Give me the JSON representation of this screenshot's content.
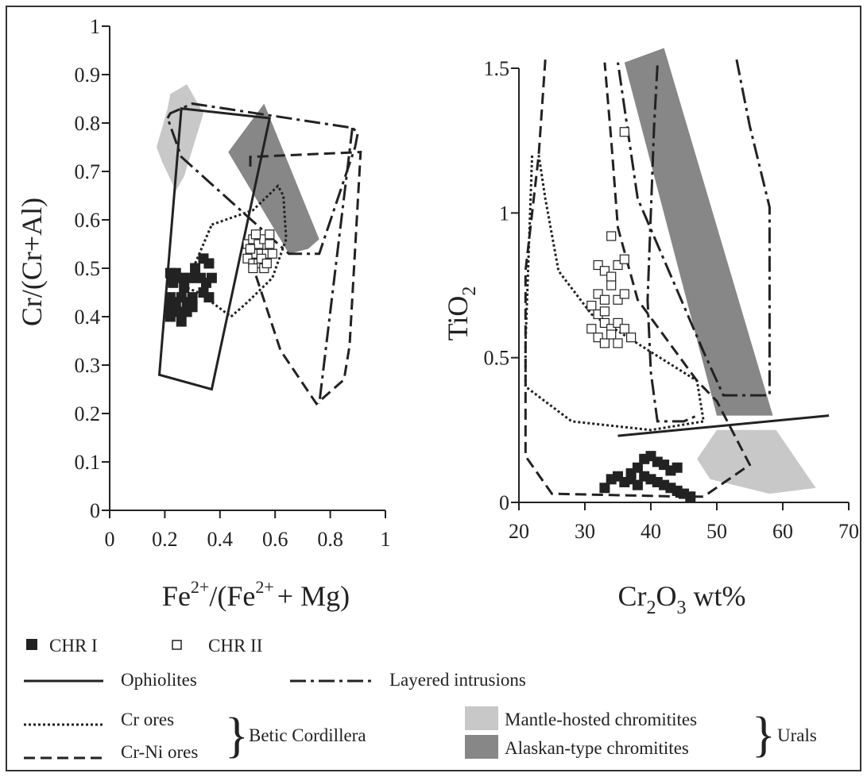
{
  "chart_data": [
    {
      "type": "scatter",
      "xlabel": {
        "a": "Fe",
        "a_sup": "2+",
        "b": "/(Fe",
        "b_sup": "2+",
        "c": "+ Mg)"
      },
      "ylabel": "Cr/(Cr+Al)",
      "xlim": [
        0,
        1
      ],
      "ylim": [
        0,
        1
      ],
      "xticks": [
        "0",
        "0.2",
        "0.4",
        "0.6",
        "0.8",
        "1"
      ],
      "yticks": [
        "0",
        "0.1",
        "0.2",
        "0.3",
        "0.4",
        "0.5",
        "0.6",
        "0.7",
        "0.8",
        "0.9",
        "1"
      ],
      "fields": [
        {
          "name": "Mantle-hosted chromitites",
          "style": "fill-light",
          "points": [
            [
              0.22,
              0.86
            ],
            [
              0.28,
              0.88
            ],
            [
              0.34,
              0.82
            ],
            [
              0.27,
              0.69
            ],
            [
              0.24,
              0.66
            ],
            [
              0.19,
              0.72
            ],
            [
              0.17,
              0.75
            ],
            [
              0.21,
              0.83
            ]
          ]
        },
        {
          "name": "Alaskan-type chromitites",
          "style": "fill-dark",
          "points": [
            [
              0.43,
              0.74
            ],
            [
              0.56,
              0.84
            ],
            [
              0.76,
              0.56
            ],
            [
              0.72,
              0.54
            ],
            [
              0.65,
              0.53
            ]
          ]
        },
        {
          "name": "Ophiolites",
          "style": "solid",
          "points": [
            [
              0.26,
              0.83
            ],
            [
              0.58,
              0.81
            ],
            [
              0.37,
              0.25
            ],
            [
              0.18,
              0.28
            ]
          ]
        },
        {
          "name": "Layered intrusions",
          "style": "dashdot",
          "points": [
            [
              0.21,
              0.81
            ],
            [
              0.22,
              0.82
            ],
            [
              0.3,
              0.84
            ],
            [
              0.88,
              0.79
            ],
            [
              0.9,
              0.78
            ],
            [
              0.89,
              0.75
            ],
            [
              0.76,
              0.53
            ],
            [
              0.65,
              0.53
            ],
            [
              0.26,
              0.73
            ],
            [
              0.21,
              0.81
            ]
          ]
        },
        {
          "name": "Cr ores",
          "style": "dotted",
          "points": [
            [
              0.37,
              0.59
            ],
            [
              0.52,
              0.62
            ],
            [
              0.61,
              0.67
            ],
            [
              0.63,
              0.65
            ],
            [
              0.64,
              0.56
            ],
            [
              0.59,
              0.48
            ],
            [
              0.5,
              0.43
            ],
            [
              0.44,
              0.4
            ],
            [
              0.37,
              0.43
            ],
            [
              0.32,
              0.45
            ],
            [
              0.28,
              0.46
            ],
            [
              0.31,
              0.51
            ],
            [
              0.37,
              0.59
            ]
          ]
        },
        {
          "name": "Cr-Ni ores",
          "style": "dashed",
          "points": [
            [
              0.51,
              0.71
            ],
            [
              0.51,
              0.73
            ],
            [
              0.91,
              0.74
            ],
            [
              0.87,
              0.34
            ],
            [
              0.85,
              0.27
            ],
            [
              0.75,
              0.22
            ],
            [
              0.62,
              0.33
            ],
            [
              0.51,
              0.52
            ]
          ]
        },
        {
          "name": "Layered intrusions",
          "style": "dashdot",
          "points": [
            [
              0.88,
              0.79
            ],
            [
              0.76,
              0.22
            ]
          ]
        }
      ],
      "series": [
        {
          "name": "CHR I",
          "marker": "filled-square",
          "points": [
            [
              0.22,
              0.49
            ],
            [
              0.24,
              0.49
            ],
            [
              0.25,
              0.48
            ],
            [
              0.27,
              0.48
            ],
            [
              0.29,
              0.48
            ],
            [
              0.31,
              0.48
            ],
            [
              0.33,
              0.48
            ],
            [
              0.35,
              0.47
            ],
            [
              0.37,
              0.48
            ],
            [
              0.23,
              0.47
            ],
            [
              0.27,
              0.46
            ],
            [
              0.31,
              0.5
            ],
            [
              0.34,
              0.52
            ],
            [
              0.36,
              0.51
            ],
            [
              0.22,
              0.44
            ],
            [
              0.24,
              0.43
            ],
            [
              0.26,
              0.44
            ],
            [
              0.28,
              0.43
            ],
            [
              0.22,
              0.42
            ],
            [
              0.25,
              0.41
            ],
            [
              0.28,
              0.41
            ],
            [
              0.3,
              0.42
            ],
            [
              0.22,
              0.4
            ],
            [
              0.26,
              0.39
            ],
            [
              0.36,
              0.44
            ],
            [
              0.34,
              0.45
            ],
            [
              0.3,
              0.44
            ]
          ]
        },
        {
          "name": "CHR II",
          "marker": "open-square",
          "points": [
            [
              0.5,
              0.55
            ],
            [
              0.52,
              0.56
            ],
            [
              0.54,
              0.55
            ],
            [
              0.56,
              0.56
            ],
            [
              0.58,
              0.55
            ],
            [
              0.51,
              0.53
            ],
            [
              0.53,
              0.53
            ],
            [
              0.55,
              0.53
            ],
            [
              0.57,
              0.53
            ],
            [
              0.59,
              0.53
            ],
            [
              0.5,
              0.52
            ],
            [
              0.52,
              0.51
            ],
            [
              0.54,
              0.51
            ],
            [
              0.56,
              0.5
            ],
            [
              0.51,
              0.54
            ],
            [
              0.53,
              0.57
            ],
            [
              0.55,
              0.52
            ],
            [
              0.57,
              0.51
            ],
            [
              0.52,
              0.5
            ],
            [
              0.58,
              0.57
            ]
          ]
        }
      ]
    },
    {
      "type": "scatter",
      "xlabel": {
        "a": "Cr",
        "a_sub": "2",
        "b": "O",
        "b_sub": "3",
        "c": " wt%"
      },
      "ylabel": {
        "a": "TiO",
        "a_sub": "2"
      },
      "xlim": [
        20,
        70
      ],
      "ylim": [
        0,
        1.5
      ],
      "xticks": [
        "20",
        "30",
        "40",
        "50",
        "60",
        "70"
      ],
      "yticks": [
        {
          "v": 0,
          "label": "0"
        },
        {
          "v": 0.5,
          "label": "0.5"
        },
        {
          "v": 1,
          "label": "1"
        },
        {
          "v": 1.5,
          "label": "1.5"
        }
      ],
      "fields": [
        {
          "name": "Alaskan-type chromitites",
          "style": "fill-dark",
          "points": [
            [
              36,
              1.52
            ],
            [
              42,
              1.57
            ],
            [
              58.5,
              0.3
            ],
            [
              50,
              0.3
            ]
          ]
        },
        {
          "name": "Mantle-hosted chromitites",
          "style": "fill-light",
          "points": [
            [
              47,
              0.15
            ],
            [
              50,
              0.25
            ],
            [
              59,
              0.25
            ],
            [
              65,
              0.05
            ],
            [
              58,
              0.03
            ],
            [
              49,
              0.08
            ]
          ]
        },
        {
          "name": "Ophiolites",
          "style": "solid",
          "points": [
            [
              35,
              0.23
            ],
            [
              67,
              0.3
            ]
          ]
        },
        {
          "name": "Layered intrusions",
          "style": "dashdot",
          "points": [
            [
              41,
              1.51
            ],
            [
              40.5,
              1.3
            ],
            [
              39.5,
              0.7
            ],
            [
              40,
              0.45
            ],
            [
              41,
              0.28
            ],
            [
              45,
              0.28
            ],
            [
              47,
              0.3
            ]
          ]
        },
        {
          "name": "Layered intrusions",
          "style": "dashdot",
          "points": [
            [
              53,
              1.53
            ],
            [
              55,
              1.3
            ],
            [
              58,
              1.02
            ],
            [
              58,
              0.37
            ],
            [
              51,
              0.37
            ],
            [
              48,
              0.52
            ],
            [
              38,
              1.05
            ],
            [
              35,
              1.52
            ]
          ]
        },
        {
          "name": "Cr ores",
          "style": "dotted",
          "points": [
            [
              23,
              1.2
            ],
            [
              24,
              1.05
            ],
            [
              26,
              0.8
            ],
            [
              31,
              0.65
            ],
            [
              40,
              0.52
            ],
            [
              47,
              0.42
            ],
            [
              48,
              0.28
            ],
            [
              40,
              0.25
            ],
            [
              28,
              0.28
            ],
            [
              21,
              0.4
            ],
            [
              21,
              0.55
            ],
            [
              22,
              1.2
            ]
          ]
        },
        {
          "name": "Cr-Ni ores",
          "style": "dashed",
          "points": [
            [
              24,
              1.53
            ],
            [
              23,
              1.2
            ],
            [
              21,
              0.8
            ],
            [
              21,
              0.16
            ],
            [
              25,
              0.03
            ],
            [
              45,
              0.02
            ],
            [
              48,
              0.02
            ],
            [
              55,
              0.13
            ],
            [
              50,
              0.35
            ],
            [
              47,
              0.42
            ],
            [
              38,
              0.7
            ],
            [
              35,
              0.95
            ],
            [
              34,
              1.25
            ],
            [
              33,
              1.52
            ]
          ]
        }
      ],
      "series": [
        {
          "name": "CHR I",
          "marker": "filled-square",
          "points": [
            [
              34,
              0.08
            ],
            [
              35,
              0.09
            ],
            [
              36,
              0.07
            ],
            [
              33,
              0.05
            ],
            [
              37,
              0.1
            ],
            [
              38,
              0.12
            ],
            [
              39,
              0.15
            ],
            [
              40,
              0.16
            ],
            [
              41,
              0.14
            ],
            [
              42,
              0.13
            ],
            [
              43,
              0.11
            ],
            [
              44,
              0.12
            ],
            [
              39,
              0.09
            ],
            [
              40,
              0.08
            ],
            [
              41,
              0.07
            ],
            [
              42,
              0.06
            ],
            [
              43,
              0.05
            ],
            [
              44,
              0.04
            ],
            [
              45,
              0.03
            ],
            [
              46,
              0.02
            ],
            [
              38,
              0.06
            ],
            [
              37,
              0.08
            ]
          ]
        },
        {
          "name": "CHR II",
          "marker": "open-square",
          "points": [
            [
              32,
              0.82
            ],
            [
              33,
              0.8
            ],
            [
              34,
              0.78
            ],
            [
              35,
              0.82
            ],
            [
              36,
              0.84
            ],
            [
              32,
              0.72
            ],
            [
              33,
              0.7
            ],
            [
              34,
              0.75
            ],
            [
              35,
              0.7
            ],
            [
              36,
              0.72
            ],
            [
              31,
              0.68
            ],
            [
              32,
              0.65
            ],
            [
              33,
              0.62
            ],
            [
              34,
              0.6
            ],
            [
              35,
              0.62
            ],
            [
              31,
              0.6
            ],
            [
              32,
              0.57
            ],
            [
              33,
              0.55
            ],
            [
              34,
              0.58
            ],
            [
              35,
              0.55
            ],
            [
              36,
              0.6
            ],
            [
              37,
              0.57
            ],
            [
              34,
              0.92
            ],
            [
              36,
              1.28
            ],
            [
              33,
              0.66
            ]
          ]
        }
      ]
    }
  ],
  "legend": {
    "chr1": "CHR I",
    "chr2": "CHR II",
    "ophiolites": "Ophiolites",
    "layered": "Layered intrusions",
    "cr_ores": "Cr ores",
    "crni_ores": "Cr-Ni ores",
    "betic": "Betic Cordillera",
    "mantle": "Mantle-hosted chromitites",
    "alaskan": "Alaskan-type chromitites",
    "urals": "Urals"
  },
  "colors": {
    "light_fill": "#c8c8c8",
    "dark_fill": "#878787",
    "ink": "#222222"
  }
}
